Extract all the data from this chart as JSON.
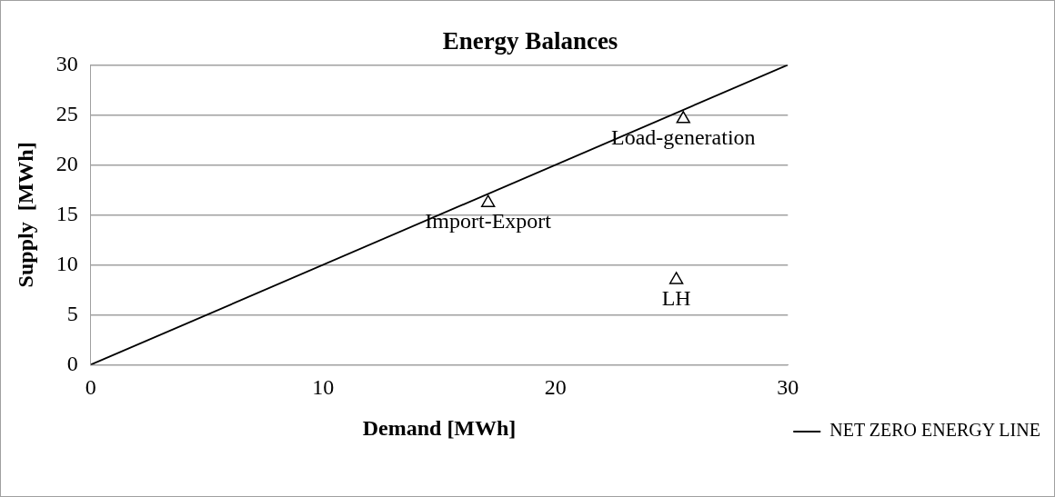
{
  "chart_data": {
    "type": "scatter",
    "title": "Energy Balances",
    "xlabel": "Demand [MWh]",
    "ylabel": "Supply  [MWh]",
    "xlim": [
      0,
      30
    ],
    "xticks": [
      0,
      10,
      20,
      30
    ],
    "ylim": [
      0,
      30
    ],
    "yticks": [
      0,
      5,
      10,
      15,
      20,
      25,
      30
    ],
    "grid": "y",
    "legend": "bottom right",
    "marker": "triangle",
    "series": [
      {
        "color": "#000000",
        "x": [
          17.1,
          25.5,
          25.2
        ],
        "values": [
          16.2,
          24.6,
          8.5
        ]
      },
      {
        "type": "line",
        "name": "NET ZERO ENERGY LINE",
        "color": "#000000",
        "x": [
          0,
          30
        ],
        "values": [
          0,
          30
        ],
        "marker": "none"
      }
    ],
    "annotations": [
      {
        "text": "Import-Export",
        "x": 17.1,
        "y": 16.2
      },
      {
        "text": "Load-generation",
        "x": 25.5,
        "y": 24.6
      },
      {
        "text": "LH",
        "x": 25.2,
        "y": 8.5
      }
    ]
  }
}
